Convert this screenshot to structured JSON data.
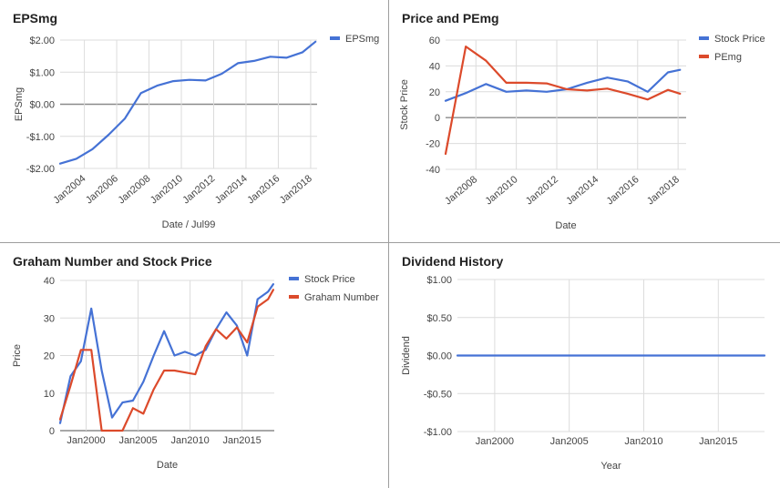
{
  "colors": {
    "blue": "#4572d5",
    "red": "#dc4a2b",
    "grid": "#dcdcdc",
    "zero": "#8a8a8a",
    "text": "#444444",
    "title": "#222222"
  },
  "chart_data": [
    {
      "id": "epsmg",
      "type": "line",
      "title": "EPSmg",
      "xlabel": "Date / Jul99",
      "ylabel": "EPSmg",
      "ylim": [
        -2,
        2
      ],
      "yticks": [
        2,
        1,
        0,
        -1,
        -2
      ],
      "ytick_labels": [
        "$2.00",
        "$1.00",
        "$0.00",
        "-$1.00",
        "-$2.00"
      ],
      "xlim": [
        2002.5,
        2018.4
      ],
      "xticks": [
        2004,
        2006,
        2008,
        2010,
        2012,
        2014,
        2016,
        2018
      ],
      "xtick_labels": [
        "Jan2004",
        "Jan2006",
        "Jan2008",
        "Jan2010",
        "Jan2012",
        "Jan2014",
        "Jan2016",
        "Jan2018"
      ],
      "xtick_rotate": true,
      "legend_position": "top-right",
      "series": [
        {
          "name": "EPSmg",
          "color": "blue",
          "x": [
            2002.5,
            2003.5,
            2004.5,
            2005.5,
            2006.5,
            2007.5,
            2008.5,
            2009.5,
            2010.5,
            2011.5,
            2012.5,
            2013.5,
            2014.5,
            2015.5,
            2016.5,
            2017.5,
            2018.3
          ],
          "y": [
            -1.85,
            -1.7,
            -1.4,
            -0.95,
            -0.45,
            0.35,
            0.58,
            0.72,
            0.76,
            0.74,
            0.95,
            1.28,
            1.35,
            1.48,
            1.45,
            1.62,
            1.95
          ]
        }
      ]
    },
    {
      "id": "price-pemg",
      "type": "line",
      "title": "Price and PEmg",
      "xlabel": "Date",
      "ylabel": "Stock Price",
      "ylim": [
        -40,
        60
      ],
      "yticks": [
        60,
        40,
        20,
        0,
        -20,
        -40
      ],
      "ytick_labels": [
        "60",
        "40",
        "20",
        "0",
        "-20",
        "-40"
      ],
      "xlim": [
        2006.5,
        2018.4
      ],
      "xticks": [
        2008,
        2010,
        2012,
        2014,
        2016,
        2018
      ],
      "xtick_labels": [
        "Jan2008",
        "Jan2010",
        "Jan2012",
        "Jan2014",
        "Jan2016",
        "Jan2018"
      ],
      "xtick_rotate": true,
      "legend_position": "top-right",
      "series": [
        {
          "name": "Stock Price",
          "color": "blue",
          "x": [
            2006.5,
            2007.5,
            2008.5,
            2009.5,
            2010.5,
            2011.5,
            2012.5,
            2013.5,
            2014.5,
            2015.5,
            2016.5,
            2017.5,
            2018.1
          ],
          "y": [
            13,
            19,
            26,
            20,
            21,
            20,
            22,
            27,
            31,
            28,
            20,
            35,
            37
          ]
        },
        {
          "name": "PEmg",
          "color": "red",
          "x": [
            2006.5,
            2007.5,
            2008.5,
            2009.5,
            2010.5,
            2011.5,
            2012.5,
            2013.5,
            2014.5,
            2015.5,
            2016.5,
            2017.5,
            2018.1
          ],
          "y": [
            -28,
            55,
            44,
            27,
            27,
            26.5,
            22,
            21,
            22.5,
            18.5,
            14,
            21.5,
            18.5
          ]
        }
      ]
    },
    {
      "id": "graham",
      "type": "line",
      "title": "Graham Number and Stock Price",
      "xlabel": "Date",
      "ylabel": "Price",
      "ylim": [
        0,
        40
      ],
      "yticks": [
        40,
        30,
        20,
        10,
        0
      ],
      "ytick_labels": [
        "40",
        "30",
        "20",
        "10",
        "0"
      ],
      "xlim": [
        1997.5,
        2018.1
      ],
      "xticks": [
        2000,
        2005,
        2010,
        2015
      ],
      "xtick_labels": [
        "Jan2000",
        "Jan2005",
        "Jan2010",
        "Jan2015"
      ],
      "xtick_rotate": false,
      "legend_position": "top-right",
      "series": [
        {
          "name": "Stock Price",
          "color": "blue",
          "x": [
            1997.5,
            1998.5,
            1999.5,
            2000.5,
            2001.5,
            2002.5,
            2003.5,
            2004.5,
            2005.5,
            2006.5,
            2007.5,
            2008.5,
            2009.5,
            2010.5,
            2011.5,
            2012.5,
            2013.5,
            2014.5,
            2015.5,
            2016.5,
            2017.5,
            2018.0
          ],
          "y": [
            2,
            14.5,
            18.5,
            32.5,
            16,
            3.5,
            7.5,
            8,
            13,
            20,
            26.5,
            20,
            21,
            20,
            21.5,
            27,
            31.5,
            28,
            20,
            35,
            37,
            39
          ]
        },
        {
          "name": "Graham Number",
          "color": "red",
          "x": [
            1997.5,
            1998.5,
            1999.5,
            2000.5,
            2001.5,
            2002.5,
            2003.5,
            2004.5,
            2005.5,
            2006.5,
            2007.5,
            2008.5,
            2009.5,
            2010.5,
            2011.5,
            2012.5,
            2013.5,
            2014.5,
            2015.5,
            2016.5,
            2017.5,
            2018.0
          ],
          "y": [
            3,
            12,
            21.5,
            21.5,
            0,
            0,
            0,
            6,
            4.5,
            11,
            16,
            16,
            15.5,
            15,
            22.5,
            27,
            24.5,
            27.5,
            23.5,
            33,
            35,
            37.5
          ]
        }
      ]
    },
    {
      "id": "dividend",
      "type": "line",
      "title": "Dividend History",
      "xlabel": "Year",
      "ylabel": "Dividend",
      "ylim": [
        -1,
        1
      ],
      "yticks": [
        1,
        0.5,
        0,
        -0.5,
        -1
      ],
      "ytick_labels": [
        "$1.00",
        "$0.50",
        "$0.00",
        "-$0.50",
        "-$1.00"
      ],
      "xlim": [
        1997.5,
        2018.1
      ],
      "xticks": [
        2000,
        2005,
        2010,
        2015
      ],
      "xtick_labels": [
        "Jan2000",
        "Jan2005",
        "Jan2010",
        "Jan2015"
      ],
      "xtick_rotate": false,
      "legend_position": "none",
      "series": [
        {
          "color": "blue",
          "x": [
            1997.5,
            2018.1
          ],
          "y": [
            0,
            0
          ]
        }
      ]
    }
  ]
}
